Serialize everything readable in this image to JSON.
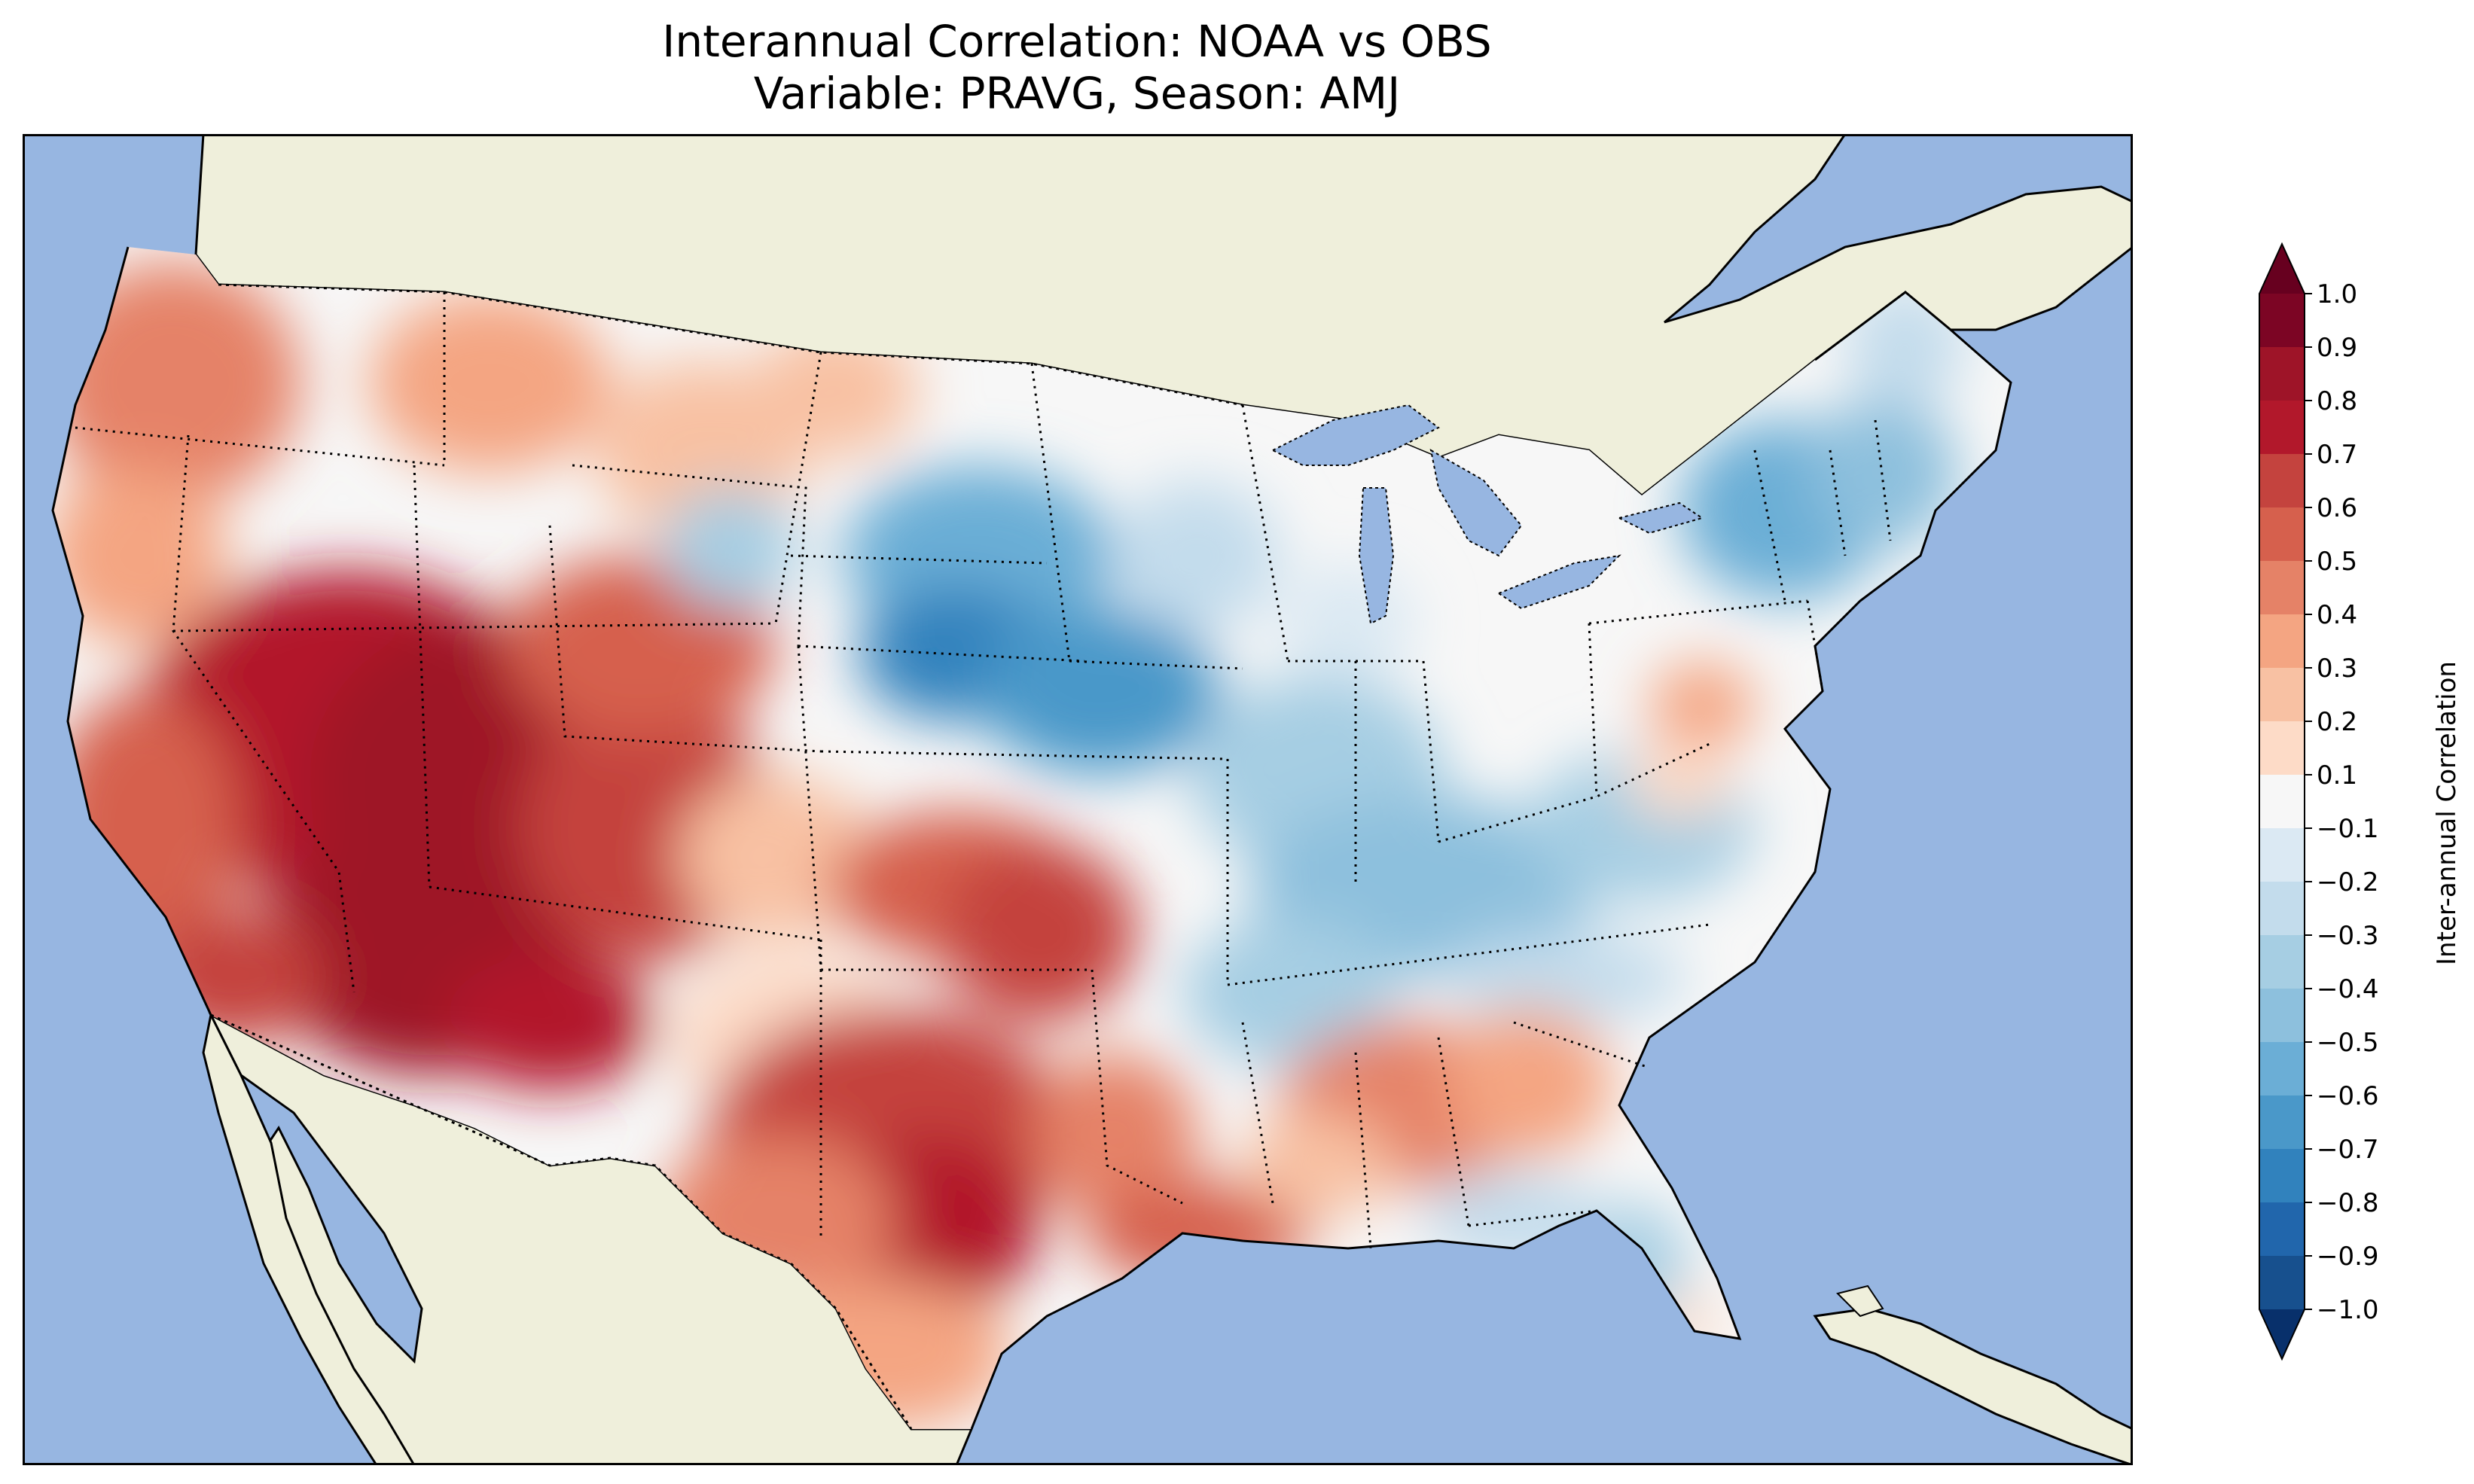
{
  "figure": {
    "title_line1": "Interannual Correlation: NOAA vs OBS",
    "title_line2": "Variable: PRAVG, Season: AMJ"
  },
  "map": {
    "region": "Contiguous United States",
    "variable": "PRAVG",
    "season": "AMJ",
    "ocean_color": "#97b6e1",
    "land_color": "#efefdb",
    "features": [
      "coastlines",
      "state-borders",
      "country-borders",
      "great-lakes"
    ],
    "regional_pattern": [
      {
        "region": "Great Basin / Utah / Arizona",
        "correlation": 0.85
      },
      {
        "region": "California",
        "correlation": 0.5
      },
      {
        "region": "Pacific Northwest",
        "correlation": 0.4
      },
      {
        "region": "Texas / Oklahoma",
        "correlation": 0.6
      },
      {
        "region": "Northern Plains (SD/NE)",
        "correlation": -0.6
      },
      {
        "region": "Ohio Valley / Midwest",
        "correlation": -0.3
      },
      {
        "region": "Northeast",
        "correlation": -0.4
      },
      {
        "region": "Southeast (GA/AL)",
        "correlation": 0.4
      },
      {
        "region": "Florida",
        "correlation": -0.2
      }
    ]
  },
  "colorbar": {
    "label": "Inter-annual Correlation",
    "ticks": [
      "1.0",
      "0.9",
      "0.8",
      "0.7",
      "0.6",
      "0.5",
      "0.4",
      "0.3",
      "0.2",
      "0.1",
      "−0.1",
      "−0.2",
      "−0.3",
      "−0.4",
      "−0.5",
      "−0.6",
      "−0.7",
      "−0.8",
      "−0.9",
      "−1.0"
    ],
    "extend": "both",
    "colors_top_to_bottom": [
      "#67001f",
      "#7c0524",
      "#9e1428",
      "#b2182b",
      "#c4433e",
      "#d6604d",
      "#e58267",
      "#f4a582",
      "#f8c1a3",
      "#fddbc7",
      "#f7f7f7",
      "#dbe9f3",
      "#c3dcec",
      "#a6cee3",
      "#8dc0dd",
      "#6baed6",
      "#4a98c9",
      "#3182bd",
      "#2166ac",
      "#17508e",
      "#08306b"
    ]
  }
}
